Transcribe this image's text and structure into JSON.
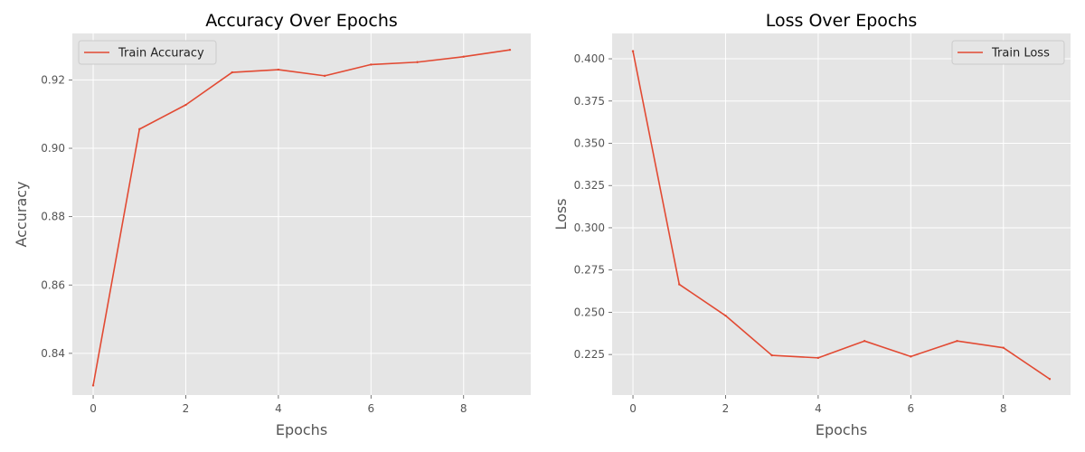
{
  "chart_data": [
    {
      "type": "line",
      "title": "Accuracy Over Epochs",
      "xlabel": "Epochs",
      "ylabel": "Accuracy",
      "xlim": [
        -0.45,
        9.45
      ],
      "ylim": [
        0.8278,
        0.9336
      ],
      "xticks": [
        0,
        2,
        4,
        6,
        8
      ],
      "xtick_labels": [
        "0",
        "2",
        "4",
        "6",
        "8"
      ],
      "yticks": [
        0.84,
        0.86,
        0.88,
        0.9,
        0.92
      ],
      "ytick_labels": [
        "0.84",
        "0.86",
        "0.88",
        "0.90",
        "0.92"
      ],
      "grid": true,
      "legend_position": "top-left",
      "series": [
        {
          "name": "Train Accuracy",
          "color": "#E24A33",
          "x": [
            0,
            1,
            2,
            3,
            4,
            5,
            6,
            7,
            8,
            9
          ],
          "y": [
            0.8306,
            0.9056,
            0.9127,
            0.9222,
            0.923,
            0.9212,
            0.9245,
            0.9252,
            0.9268,
            0.9288
          ]
        }
      ]
    },
    {
      "type": "line",
      "title": "Loss Over Epochs",
      "xlabel": "Epochs",
      "ylabel": "Loss",
      "xlim": [
        -0.45,
        9.45
      ],
      "ylim": [
        0.201,
        0.415
      ],
      "xticks": [
        0,
        2,
        4,
        6,
        8
      ],
      "xtick_labels": [
        "0",
        "2",
        "4",
        "6",
        "8"
      ],
      "yticks": [
        0.225,
        0.25,
        0.275,
        0.3,
        0.325,
        0.35,
        0.375,
        0.4
      ],
      "ytick_labels": [
        "0.225",
        "0.250",
        "0.275",
        "0.300",
        "0.325",
        "0.350",
        "0.375",
        "0.400"
      ],
      "grid": true,
      "legend_position": "top-right",
      "series": [
        {
          "name": "Train Loss",
          "color": "#E24A33",
          "x": [
            0,
            1,
            2,
            3,
            4,
            5,
            6,
            7,
            8,
            9
          ],
          "y": [
            0.4045,
            0.2665,
            0.248,
            0.2245,
            0.223,
            0.233,
            0.2238,
            0.233,
            0.229,
            0.2105
          ]
        }
      ]
    }
  ]
}
